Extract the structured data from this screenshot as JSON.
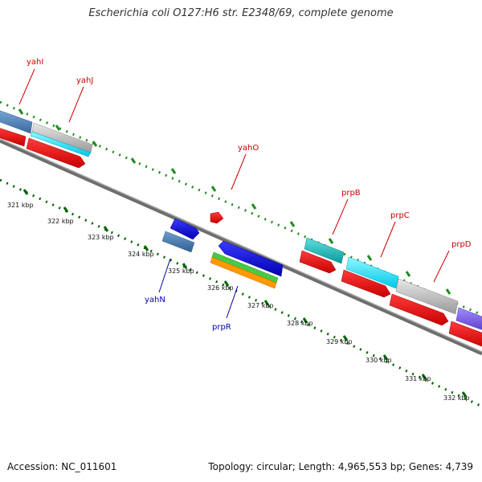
{
  "title": "Escherichia coli O127:H6 str. E2348/69, complete genome",
  "footer": {
    "accession": "Accession: NC_011601",
    "topology": "Topology: circular; Length: 4,965,553 bp; Genes: 4,739"
  },
  "colors": {
    "forward_label": "#cc0000",
    "reverse_label": "#0000aa",
    "tick_forward": "#228b22",
    "tick_reverse": "#006400",
    "backbone": "#7f7f7f"
  },
  "scale_labels": [
    "321 kbp",
    "322 kbp",
    "323 kbp",
    "324 kbp",
    "325 kbp",
    "326 kbp",
    "327 kbp",
    "328 kbp",
    "329 kbp",
    "330 kbp",
    "331 kbp",
    "332 kbp"
  ],
  "gene_labels": {
    "yahI": "yahI",
    "yahJ": "yahJ",
    "yahO": "yahO",
    "prpB": "prpB",
    "prpC": "prpC",
    "prpD": "prpD",
    "yahN": "yahN",
    "prpR": "prpR"
  }
}
